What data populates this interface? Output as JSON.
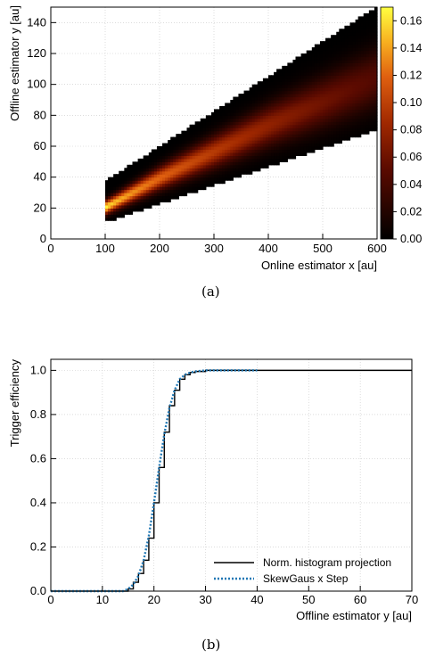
{
  "chart_data": [
    {
      "panel": "(a)",
      "type": "heatmap",
      "xlabel": "Online estimator x [au]",
      "ylabel": "Offline estimator y [au]",
      "xlim": [
        0,
        600
      ],
      "ylim": [
        0,
        150
      ],
      "xticks": [
        0,
        100,
        200,
        300,
        400,
        500,
        600
      ],
      "yticks": [
        0,
        20,
        40,
        60,
        80,
        100,
        120,
        140
      ],
      "grid": true,
      "colormap": "black-red-yellow (afmhot)",
      "colorbar": {
        "range": [
          0,
          0.17
        ],
        "ticks": [
          "0.00",
          "0.02",
          "0.04",
          "0.06",
          "0.08",
          "0.10",
          "0.12",
          "0.14",
          "0.16"
        ]
      },
      "band": {
        "x_range": [
          100,
          600
        ],
        "lower_edge_at_x100": 12,
        "upper_edge_at_x100": 37,
        "lower_edge_at_x600": 72,
        "upper_edge_at_x600": 150,
        "ridge": [
          [
            100,
            21
          ],
          [
            200,
            40
          ],
          [
            300,
            57
          ],
          [
            400,
            74
          ],
          [
            500,
            89
          ],
          [
            600,
            105
          ]
        ],
        "peak_density": 0.165
      }
    },
    {
      "panel": "(b)",
      "type": "line",
      "xlabel": "Offline estimator y [au]",
      "ylabel": "Trigger efficiency",
      "xlim": [
        0,
        70
      ],
      "ylim": [
        0,
        1.05
      ],
      "xticks": [
        0,
        10,
        20,
        30,
        40,
        50,
        60,
        70
      ],
      "yticks": [
        "0.0",
        "0.2",
        "0.4",
        "0.6",
        "0.8",
        "1.0"
      ],
      "grid": true,
      "legend_position": "bottom-right",
      "series": [
        {
          "name": "Norm. histogram projection",
          "style": "step",
          "color": "#000000",
          "x": [
            0,
            15,
            16,
            17,
            18,
            19,
            20,
            21,
            22,
            23,
            24,
            25,
            26,
            27,
            28,
            30,
            32,
            35,
            70
          ],
          "values": [
            0.0,
            0.01,
            0.04,
            0.08,
            0.14,
            0.24,
            0.4,
            0.56,
            0.72,
            0.84,
            0.91,
            0.96,
            0.98,
            0.99,
            0.995,
            1.0,
            1.0,
            1.0,
            1.0
          ]
        },
        {
          "name": "SkewGaus x Step",
          "style": "dotted",
          "color": "#1f77b4",
          "x": [
            0,
            14,
            15,
            16,
            17,
            18,
            19,
            20,
            21,
            22,
            23,
            24,
            25,
            26,
            27,
            28,
            30,
            35,
            40
          ],
          "values": [
            0.0,
            0.0,
            0.01,
            0.03,
            0.07,
            0.14,
            0.25,
            0.4,
            0.56,
            0.71,
            0.83,
            0.91,
            0.96,
            0.98,
            0.99,
            0.995,
            1.0,
            1.0,
            1.0
          ]
        }
      ]
    }
  ],
  "captions": {
    "a": "(a)",
    "b": "(b)"
  },
  "colors": {
    "grid": "#c8c8c8",
    "step_line": "#000000",
    "fit_line": "#1f77b4"
  }
}
